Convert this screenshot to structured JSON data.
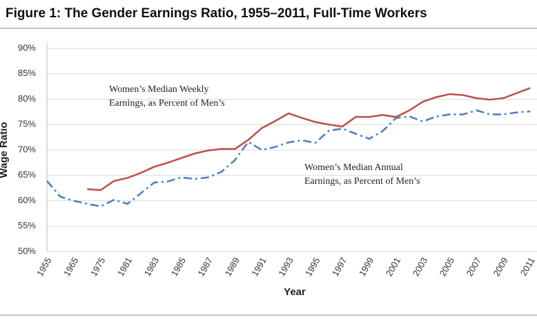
{
  "chart_data": {
    "type": "line",
    "title": "Figure 1: The Gender Earnings Ratio, 1955–2011, Full-Time Workers",
    "ylabel": "Wage Ratio",
    "xlabel": "Year",
    "categories": [
      "1955",
      null,
      "1965",
      null,
      "1975",
      null,
      "1981",
      null,
      "1983",
      null,
      "1985",
      null,
      "1987",
      null,
      "1989",
      null,
      "1991",
      null,
      "1993",
      null,
      "1995",
      null,
      "1997",
      null,
      "1999",
      null,
      "2001",
      null,
      "2003",
      null,
      "2005",
      null,
      "2007",
      null,
      "2009",
      null,
      "2011"
    ],
    "series": [
      {
        "color": "#c0504d",
        "style": "solid",
        "values": [
          null,
          null,
          null,
          62.3,
          62.1,
          63.9,
          64.5,
          65.5,
          66.7,
          67.5,
          68.4,
          69.3,
          69.9,
          70.2,
          70.2,
          72.0,
          74.3,
          75.7,
          77.2,
          76.3,
          75.5,
          75.0,
          74.6,
          76.5,
          76.5,
          76.9,
          76.5,
          77.8,
          79.5,
          80.4,
          81.0,
          80.8,
          80.2,
          79.9,
          80.2,
          81.2,
          82.2
        ]
      },
      {
        "color": "#4f81bd",
        "style": "dashdot",
        "values": [
          63.9,
          60.8,
          60.0,
          59.4,
          58.9,
          60.2,
          59.4,
          61.5,
          63.6,
          63.8,
          64.6,
          64.3,
          64.6,
          65.7,
          68.0,
          71.6,
          70.0,
          70.6,
          71.5,
          71.9,
          71.4,
          73.8,
          74.2,
          73.2,
          72.2,
          73.7,
          76.3,
          76.6,
          75.6,
          76.6,
          77.0,
          77.0,
          77.8,
          77.0,
          77.0,
          77.4,
          77.6
        ]
      }
    ],
    "annotations": [
      {
        "lines": [
          "Women’s Median Weekly",
          "Earnings, as Percent of Men’s"
        ]
      },
      {
        "lines": [
          "Women’s Median Annual",
          "Earnings, as Percent of Men’s"
        ]
      }
    ],
    "ylim": [
      50,
      90
    ],
    "yticks": [
      {
        "value": 50,
        "label": "50%"
      },
      {
        "value": 55,
        "label": "55%"
      },
      {
        "value": 60,
        "label": "60%"
      },
      {
        "value": 65,
        "label": "65%"
      },
      {
        "value": 70,
        "label": "70%"
      },
      {
        "value": 75,
        "label": "75%"
      },
      {
        "value": 80,
        "label": "80%"
      },
      {
        "value": 85,
        "label": "85%"
      },
      {
        "value": 90,
        "label": "90%"
      }
    ],
    "grid": true
  }
}
